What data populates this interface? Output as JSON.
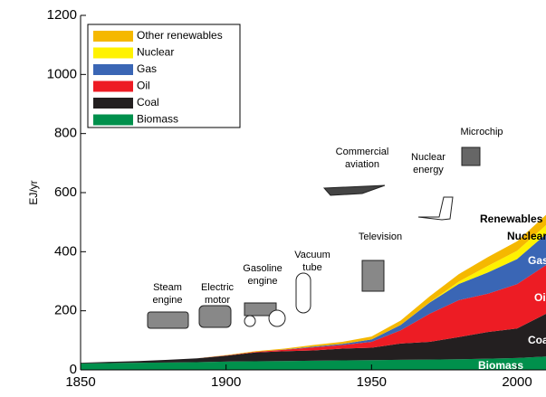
{
  "chart_data": {
    "type": "stacked_area",
    "y_label": "EJ/yr",
    "x": [
      1850,
      1860,
      1870,
      1880,
      1890,
      1900,
      1910,
      1920,
      1930,
      1940,
      1950,
      1960,
      1970,
      1980,
      1990,
      2000,
      2010
    ],
    "series": [
      {
        "name": "Biomass",
        "color": "#00904c",
        "values": [
          22,
          23,
          24,
          25,
          26,
          28,
          29,
          30,
          31,
          32,
          33,
          34,
          35,
          36,
          38,
          40,
          45
        ]
      },
      {
        "name": "Coal",
        "color": "#231f20",
        "values": [
          2,
          4,
          6,
          9,
          13,
          20,
          30,
          33,
          35,
          40,
          42,
          55,
          60,
          75,
          90,
          100,
          145
        ]
      },
      {
        "name": "Oil",
        "color": "#ed1c24",
        "values": [
          0,
          0,
          0,
          0,
          0,
          1,
          2,
          5,
          10,
          12,
          20,
          45,
          95,
          125,
          130,
          150,
          165
        ]
      },
      {
        "name": "Gas",
        "color": "#3a66b5",
        "values": [
          0,
          0,
          0,
          0,
          0,
          0,
          0,
          1,
          3,
          4,
          8,
          18,
          38,
          55,
          72,
          85,
          105
        ]
      },
      {
        "name": "Nuclear",
        "color": "#fff200",
        "values": [
          0,
          0,
          0,
          0,
          0,
          0,
          0,
          0,
          0,
          0,
          0,
          0,
          1,
          8,
          22,
          28,
          30
        ]
      },
      {
        "name": "Other renewables",
        "color": "#f5b800",
        "values": [
          0,
          0,
          0,
          0,
          0,
          1,
          2,
          3,
          5,
          7,
          10,
          15,
          20,
          25,
          30,
          32,
          35
        ]
      }
    ],
    "xlim": [
      1850,
      2010
    ],
    "xticks": [
      1850,
      1900,
      1950,
      2000
    ],
    "ylim": [
      0,
      1200
    ],
    "yticks": [
      0,
      200,
      400,
      600,
      800,
      1000,
      1200
    ],
    "legend": "upper left",
    "inventions": [
      {
        "lines": [
          "Steam",
          "engine"
        ]
      },
      {
        "lines": [
          "Electric",
          "motor"
        ]
      },
      {
        "lines": [
          "Gasoline",
          "engine"
        ]
      },
      {
        "lines": [
          "Vacuum",
          "tube"
        ]
      },
      {
        "lines": [
          "Television"
        ]
      },
      {
        "lines": [
          "Commercial",
          "aviation"
        ]
      },
      {
        "lines": [
          "Nuclear",
          "energy"
        ]
      },
      {
        "lines": [
          "Microchip"
        ]
      }
    ],
    "side_labels": [
      "Renewables",
      "Nuclear",
      "Gas",
      "Oil",
      "Coal",
      "Biomass"
    ]
  }
}
